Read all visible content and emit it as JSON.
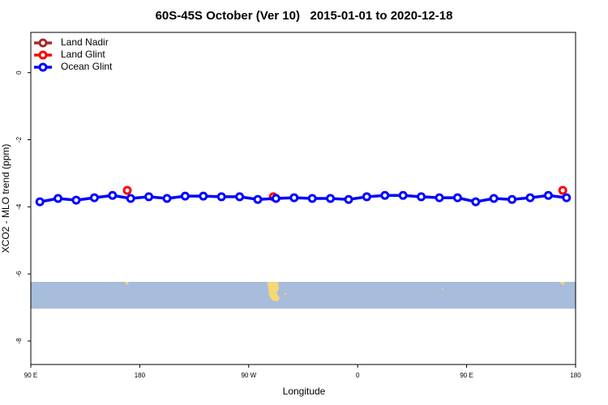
{
  "chart_data": {
    "type": "line",
    "title": "60S-45S October (Ver 10)   2015-01-01 to 2020-12-18",
    "x_label": "Longitude",
    "y_label": "XCO2 - MLO trend (ppm)",
    "xlim": [
      90,
      540
    ],
    "ylim": [
      -8.7,
      1.2
    ],
    "xticks": [
      {
        "value": 90,
        "label": "90 E"
      },
      180,
      {
        "value": 270,
        "label": "90 W"
      },
      {
        "value": 360,
        "label": "0"
      },
      {
        "value": 450,
        "label": "90 E"
      },
      {
        "value": 540,
        "label": "180"
      }
    ],
    "yticks": [
      0,
      -2,
      -4,
      -6,
      -8
    ],
    "legend": "top-left",
    "series": [
      {
        "name": "Land Nadir",
        "color": "#a52a2a",
        "x": [],
        "values": []
      },
      {
        "name": "Land Glint",
        "color": "#ff0000",
        "x": [
          169.7,
          290.3,
          529.4
        ],
        "values": [
          -3.51,
          -3.7,
          -3.51
        ]
      },
      {
        "name": "Ocean Glint",
        "color": "#0000ff",
        "x": [
          97.5,
          112.5,
          127.5,
          142.5,
          157.5,
          172.5,
          187.5,
          202.5,
          217.5,
          232.5,
          247.5,
          262.5,
          277.5,
          292.5,
          307.5,
          322.5,
          337.5,
          352.5,
          367.5,
          382.5,
          397.5,
          412.5,
          427.5,
          442.5,
          457.5,
          472.5,
          487.5,
          502.5,
          517.5,
          532.5
        ],
        "values": [
          -3.85,
          -3.75,
          -3.8,
          -3.73,
          -3.66,
          -3.75,
          -3.7,
          -3.75,
          -3.68,
          -3.68,
          -3.7,
          -3.7,
          -3.78,
          -3.75,
          -3.73,
          -3.75,
          -3.75,
          -3.78,
          -3.7,
          -3.66,
          -3.66,
          -3.7,
          -3.73,
          -3.73,
          -3.85,
          -3.75,
          -3.78,
          -3.73,
          -3.66,
          -3.73
        ]
      }
    ]
  }
}
